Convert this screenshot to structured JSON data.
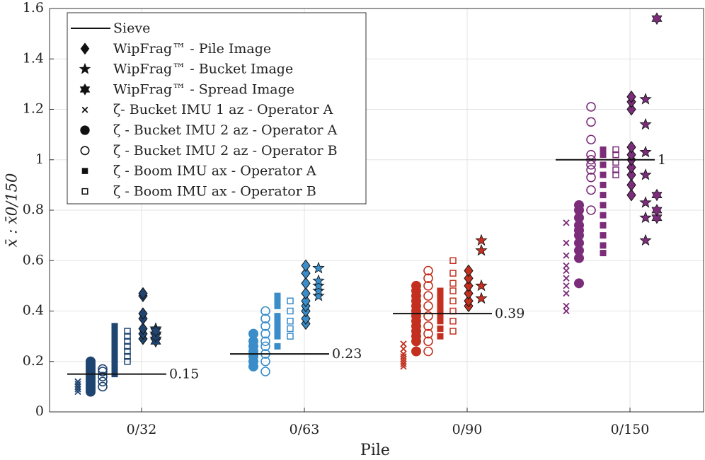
{
  "chart_data": {
    "type": "strip",
    "xlabel": "Pile",
    "ylabel": "x̄ : x̄0/150",
    "categories": [
      "0/32",
      "0/63",
      "0/90",
      "0/150"
    ],
    "category_colors": [
      "#1f4470",
      "#3a8dc9",
      "#c3301f",
      "#7b2d7a"
    ],
    "ylim": [
      0,
      1.6
    ],
    "yticks": [
      0,
      0.2,
      0.4,
      0.6,
      0.8,
      1,
      1.2,
      1.4,
      1.6
    ],
    "grid": true,
    "legend": "upper left",
    "series": [
      {
        "name": "Sieve",
        "marker": "line",
        "values": [
          0.15,
          0.23,
          0.39,
          1
        ]
      },
      {
        "name": "WipFrag™ - Pile Image",
        "marker": "diamond",
        "values": [
          [
            0.29,
            0.31,
            0.33,
            0.37,
            0.39,
            0.46,
            0.47
          ],
          [
            0.35,
            0.37,
            0.4,
            0.42,
            0.44,
            0.47,
            0.51,
            0.55,
            0.58
          ],
          [
            0.42,
            0.44,
            0.47,
            0.5,
            0.53,
            0.56
          ],
          [
            0.86,
            0.9,
            0.94,
            0.97,
            1.0,
            1.02,
            1.05,
            1.2,
            1.23,
            1.25
          ]
        ]
      },
      {
        "name": "WipFrag™ - Bucket Image",
        "marker": "star",
        "values": [
          [
            0.29,
            0.31,
            0.33
          ],
          [
            0.46,
            0.48,
            0.5,
            0.52,
            0.57
          ],
          [
            0.45,
            0.5,
            0.64,
            0.68
          ],
          [
            0.68,
            0.77,
            0.83,
            0.94,
            1.03,
            1.14,
            1.24
          ]
        ]
      },
      {
        "name": "WipFrag™ - Spread Image",
        "marker": "hexagram",
        "values": [
          [
            0.28,
            0.3,
            0.32
          ],
          [],
          [],
          [
            0.77,
            0.8,
            0.86,
            1.56
          ]
        ]
      },
      {
        "name": "ζ- Bucket IMU 1 az - Operator A",
        "marker": "x",
        "values": [
          [
            0.08,
            0.09,
            0.1,
            0.1,
            0.11,
            0.12,
            0.12
          ],
          [],
          [
            0.18,
            0.19,
            0.2,
            0.21,
            0.22,
            0.23,
            0.25,
            0.27
          ],
          [
            0.4,
            0.42,
            0.47,
            0.5,
            0.53,
            0.56,
            0.58,
            0.62,
            0.67,
            0.75
          ]
        ]
      },
      {
        "name": "ζ - Bucket IMU 2 az - Operator A",
        "marker": "circle",
        "values": [
          [
            0.08,
            0.09,
            0.1,
            0.11,
            0.12,
            0.13,
            0.14,
            0.15,
            0.16,
            0.17,
            0.18,
            0.19,
            0.2
          ],
          [
            0.18,
            0.2,
            0.22,
            0.24,
            0.26,
            0.28,
            0.31
          ],
          [
            0.24,
            0.28,
            0.3,
            0.32,
            0.34,
            0.36,
            0.38,
            0.4,
            0.42,
            0.44,
            0.46,
            0.48,
            0.5
          ],
          [
            0.51,
            0.61,
            0.64,
            0.67,
            0.7,
            0.72,
            0.74,
            0.77,
            0.8,
            0.82
          ]
        ]
      },
      {
        "name": "ζ - Bucket IMU 2 az - Operator B",
        "marker": "open-circle",
        "values": [
          [
            0.1,
            0.12,
            0.14,
            0.16,
            0.17
          ],
          [
            0.16,
            0.2,
            0.23,
            0.26,
            0.28,
            0.31,
            0.34,
            0.37,
            0.4
          ],
          [
            0.24,
            0.28,
            0.31,
            0.34,
            0.38,
            0.42,
            0.46,
            0.5,
            0.53,
            0.56
          ],
          [
            0.8,
            0.88,
            0.93,
            0.96,
            0.98,
            1.0,
            1.02,
            1.08,
            1.15,
            1.21
          ]
        ]
      },
      {
        "name": "ζ - Boom IMU ax - Operator A",
        "marker": "square",
        "values": [
          [
            0.15,
            0.17,
            0.19,
            0.2,
            0.22,
            0.24,
            0.26,
            0.28,
            0.3,
            0.32,
            0.34
          ],
          [
            0.26,
            0.3,
            0.32,
            0.34,
            0.36,
            0.38,
            0.42,
            0.44,
            0.46
          ],
          [
            0.3,
            0.33,
            0.36,
            0.38,
            0.4,
            0.42,
            0.44,
            0.46,
            0.48
          ],
          [
            0.63,
            0.66,
            0.7,
            0.74,
            0.78,
            0.82,
            0.86,
            0.9,
            0.94,
            0.98,
            1.02,
            1.04
          ]
        ]
      },
      {
        "name": "ζ - Boom IMU ax - Operator B",
        "marker": "open-square",
        "values": [
          [
            0.2,
            0.22,
            0.24,
            0.26,
            0.28,
            0.3,
            0.32
          ],
          [
            0.3,
            0.33,
            0.36,
            0.4,
            0.44
          ],
          [
            0.32,
            0.36,
            0.4,
            0.44,
            0.48,
            0.51,
            0.55,
            0.6
          ],
          [
            0.94,
            0.96,
            0.99,
            1.02,
            1.04
          ]
        ]
      }
    ]
  }
}
